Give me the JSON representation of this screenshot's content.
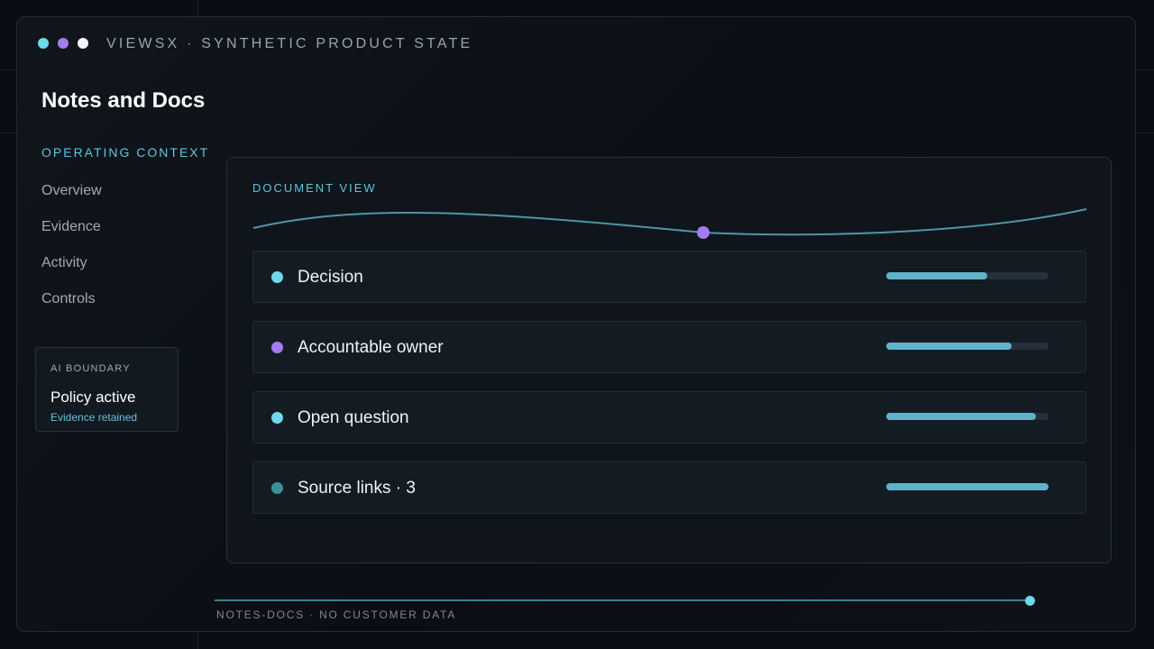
{
  "window": {
    "title": "VIEWSX · SYNTHETIC PRODUCT STATE",
    "dot_colors": [
      "#6fd8ea",
      "#a57bf0",
      "#f2f5f7"
    ]
  },
  "page": {
    "title": "Notes and Docs"
  },
  "sidebar": {
    "section_label": "OPERATING CONTEXT",
    "items": [
      {
        "label": "Overview"
      },
      {
        "label": "Evidence"
      },
      {
        "label": "Activity"
      },
      {
        "label": "Controls"
      }
    ]
  },
  "ai_boundary": {
    "label": "AI BOUNDARY",
    "status": "Policy active",
    "detail": "Evidence retained"
  },
  "document": {
    "label": "DOCUMENT VIEW",
    "wave_color": "#4f97a6",
    "marker_color": "#a57bf0",
    "rows": [
      {
        "label": "Decision",
        "dot_color": "#6fd8ea",
        "progress": 0.62
      },
      {
        "label": "Accountable owner",
        "dot_color": "#a57bf0",
        "progress": 0.77
      },
      {
        "label": "Open question",
        "dot_color": "#6fd8ea",
        "progress": 0.92
      },
      {
        "label": "Source links · 3",
        "dot_color": "#3f8f9b",
        "progress": 1.0
      }
    ]
  },
  "footer": {
    "text": "NOTES-DOCS · NO CUSTOMER DATA",
    "progress": 1.0
  }
}
